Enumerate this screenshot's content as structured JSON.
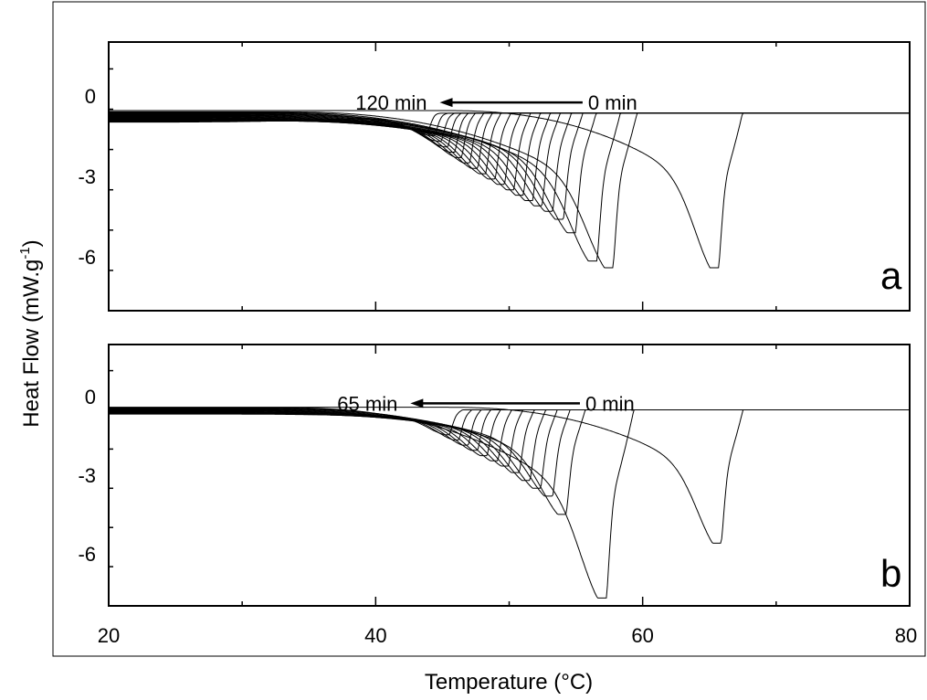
{
  "figure": {
    "xlabel": "Temperature (°C)",
    "ylabel_main": "Heat Flow (mW.g",
    "ylabel_sup": "-1",
    "ylabel_close": ")"
  },
  "chart_data": [
    {
      "type": "line",
      "panel_label": "a",
      "xlabel": "Temperature (°C)",
      "ylabel": "Heat Flow (mW.g-1)",
      "xlim": [
        20,
        80
      ],
      "ylim": [
        -8,
        2
      ],
      "x_ticks": [
        20,
        40,
        60,
        80
      ],
      "y_ticks": [
        0,
        -3,
        -6
      ],
      "grid": false,
      "annotation": {
        "start_label": "120 min",
        "end_label": "0 min",
        "arrow_from": 55.5,
        "arrow_to": 44.8,
        "arrow_y": -0.25
      },
      "baseline_right": -0.65,
      "series": [
        {
          "peak_temp": 65.6,
          "peak_value": -6.4,
          "onset": 45.0,
          "start": -0.55
        },
        {
          "peak_temp": 57.7,
          "peak_value": -6.4,
          "onset": 33.0,
          "start": -0.6
        },
        {
          "peak_temp": 56.5,
          "peak_value": -6.15,
          "onset": 32.0,
          "start": -0.62
        },
        {
          "peak_temp": 54.9,
          "peak_value": -5.1,
          "onset": 31.0,
          "start": -0.64
        },
        {
          "peak_temp": 54.0,
          "peak_value": -4.6,
          "onset": 30.5,
          "start": -0.66
        },
        {
          "peak_temp": 53.2,
          "peak_value": -4.3,
          "onset": 30.0,
          "start": -0.68
        },
        {
          "peak_temp": 52.4,
          "peak_value": -4.1,
          "onset": 29.5,
          "start": -0.7
        },
        {
          "peak_temp": 51.7,
          "peak_value": -3.9,
          "onset": 29.0,
          "start": -0.72
        },
        {
          "peak_temp": 51.0,
          "peak_value": -3.7,
          "onset": 28.5,
          "start": -0.74
        },
        {
          "peak_temp": 50.3,
          "peak_value": -3.5,
          "onset": 28.0,
          "start": -0.76
        },
        {
          "peak_temp": 49.6,
          "peak_value": -3.3,
          "onset": 27.5,
          "start": -0.78
        },
        {
          "peak_temp": 48.9,
          "peak_value": -3.1,
          "onset": 27.0,
          "start": -0.8
        },
        {
          "peak_temp": 48.2,
          "peak_value": -2.9,
          "onset": 26.5,
          "start": -0.82
        },
        {
          "peak_temp": 47.6,
          "peak_value": -2.7,
          "onset": 26.0,
          "start": -0.84
        },
        {
          "peak_temp": 47.0,
          "peak_value": -2.5,
          "onset": 25.5,
          "start": -0.86
        },
        {
          "peak_temp": 46.4,
          "peak_value": -2.3,
          "onset": 25.0,
          "start": -0.88
        },
        {
          "peak_temp": 45.9,
          "peak_value": -2.1,
          "onset": 24.5,
          "start": -0.9
        },
        {
          "peak_temp": 45.4,
          "peak_value": -1.9,
          "onset": 24.0,
          "start": -0.92
        },
        {
          "peak_temp": 44.9,
          "peak_value": -1.7,
          "onset": 23.5,
          "start": -0.94
        },
        {
          "peak_temp": 44.4,
          "peak_value": -1.5,
          "onset": 23.0,
          "start": -0.96
        },
        {
          "peak_temp": 43.9,
          "peak_value": -1.35,
          "onset": 22.5,
          "start": -0.98
        }
      ]
    },
    {
      "type": "line",
      "panel_label": "b",
      "xlabel": "Temperature (°C)",
      "ylabel": "Heat Flow (mW.g-1)",
      "xlim": [
        20,
        80
      ],
      "ylim": [
        -8,
        2
      ],
      "x_ticks": [
        20,
        40,
        60,
        80
      ],
      "y_ticks": [
        0,
        -3,
        -6
      ],
      "grid": false,
      "annotation": {
        "start_label": "65 min",
        "end_label": "0 min",
        "arrow_from": 55.3,
        "arrow_to": 42.6,
        "arrow_y": -0.25
      },
      "baseline_right": -0.5,
      "series": [
        {
          "peak_temp": 65.8,
          "peak_value": -5.6,
          "onset": 45.0,
          "start": -0.4
        },
        {
          "peak_temp": 57.2,
          "peak_value": -7.7,
          "onset": 33.0,
          "start": -0.42
        },
        {
          "peak_temp": 54.2,
          "peak_value": -4.5,
          "onset": 32.0,
          "start": -0.44
        },
        {
          "peak_temp": 53.2,
          "peak_value": -3.8,
          "onset": 31.5,
          "start": -0.46
        },
        {
          "peak_temp": 52.3,
          "peak_value": -3.5,
          "onset": 31.0,
          "start": -0.48
        },
        {
          "peak_temp": 51.5,
          "peak_value": -3.2,
          "onset": 30.5,
          "start": -0.5
        },
        {
          "peak_temp": 50.7,
          "peak_value": -2.9,
          "onset": 30.0,
          "start": -0.52
        },
        {
          "peak_temp": 49.9,
          "peak_value": -2.65,
          "onset": 29.5,
          "start": -0.54
        },
        {
          "peak_temp": 49.1,
          "peak_value": -2.45,
          "onset": 29.0,
          "start": -0.56
        },
        {
          "peak_temp": 48.3,
          "peak_value": -2.25,
          "onset": 28.5,
          "start": -0.58
        },
        {
          "peak_temp": 47.6,
          "peak_value": -2.05,
          "onset": 28.0,
          "start": -0.6
        },
        {
          "peak_temp": 46.9,
          "peak_value": -1.85,
          "onset": 27.5,
          "start": -0.62
        },
        {
          "peak_temp": 46.2,
          "peak_value": -1.65,
          "onset": 27.0,
          "start": -0.64
        },
        {
          "peak_temp": 45.5,
          "peak_value": -1.45,
          "onset": 26.5,
          "start": -0.66
        }
      ]
    }
  ]
}
